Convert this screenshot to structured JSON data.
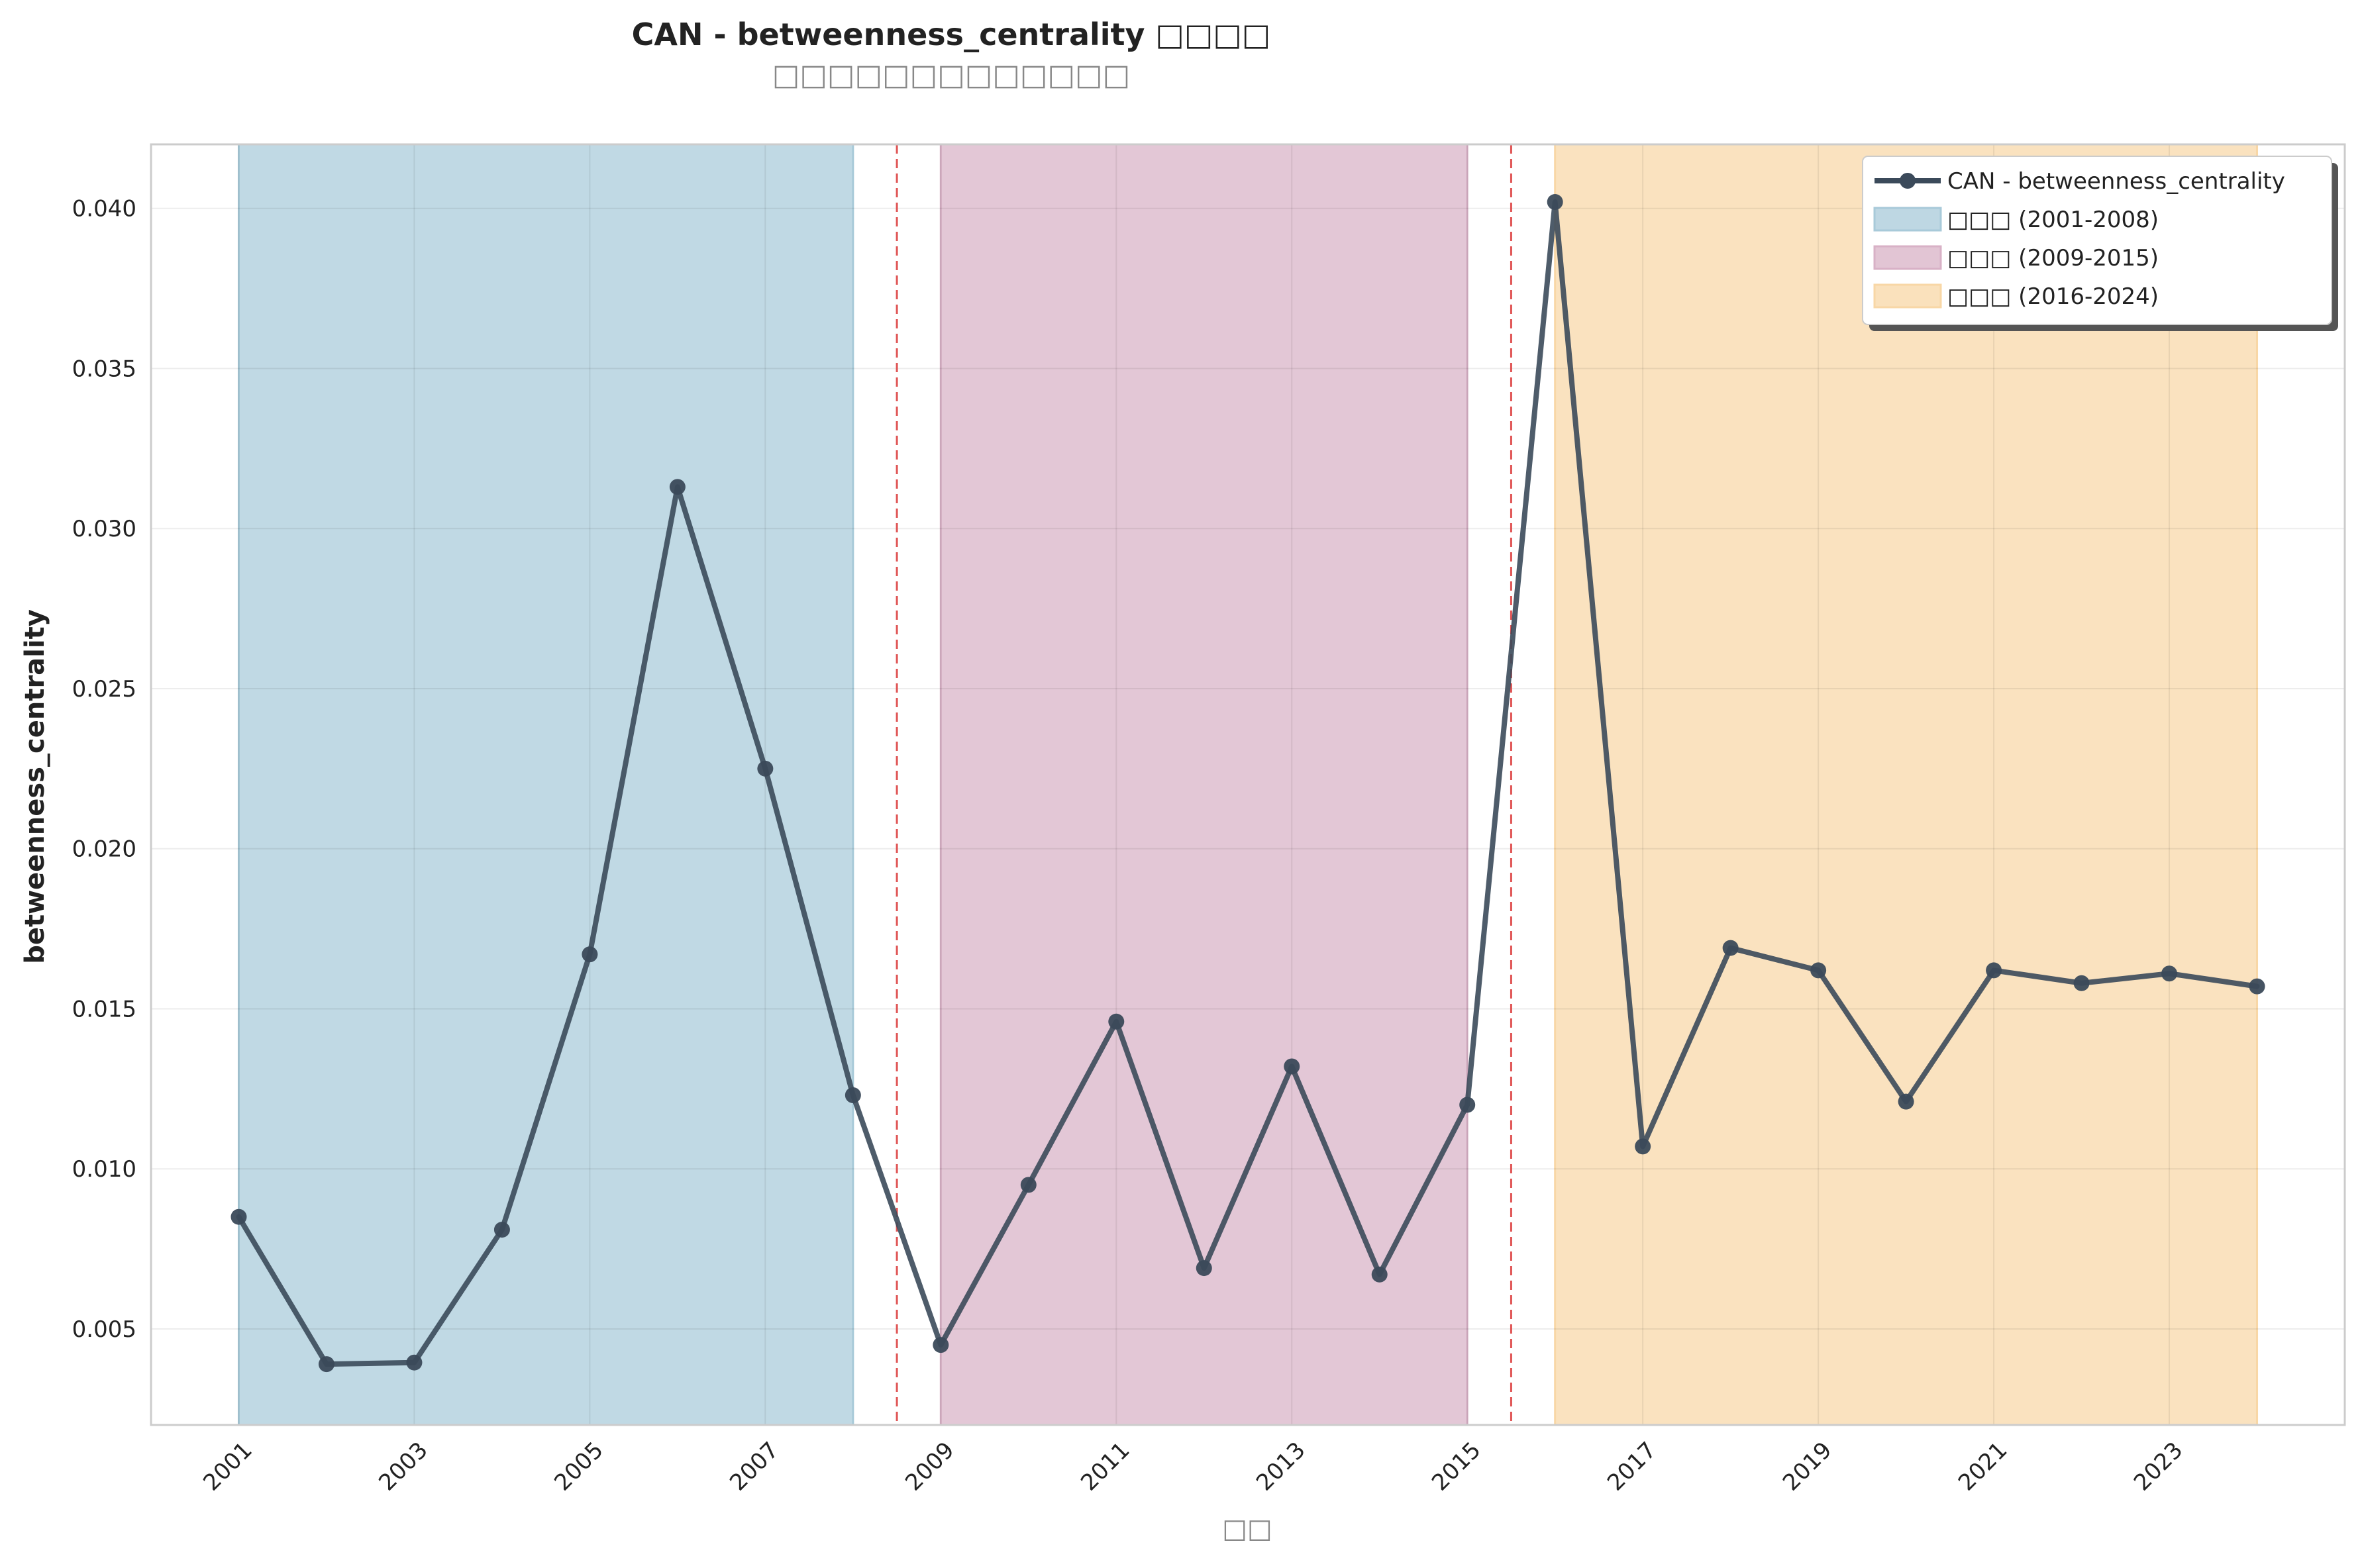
{
  "chart_data": {
    "type": "line",
    "title": "CAN - betweenness_centrality □□□□",
    "subtitle": "□□□□□□□□□□□□□",
    "xlabel": "□□",
    "ylabel": "betweenness_centrality",
    "xlim": [
      2000,
      2025
    ],
    "ylim": [
      0.002,
      0.042
    ],
    "yticks": [
      0.005,
      0.01,
      0.015,
      0.02,
      0.025,
      0.03,
      0.035,
      0.04
    ],
    "ytick_labels": [
      "0.005",
      "0.010",
      "0.015",
      "0.020",
      "0.025",
      "0.030",
      "0.035",
      "0.040"
    ],
    "xticks": [
      2001,
      2003,
      2005,
      2007,
      2009,
      2011,
      2013,
      2015,
      2017,
      2019,
      2021,
      2023
    ],
    "xtick_labels": [
      "2001",
      "2003",
      "2005",
      "2007",
      "2009",
      "2011",
      "2013",
      "2015",
      "2017",
      "2019",
      "2021",
      "2023"
    ],
    "grid": true,
    "legend_position": "top-right",
    "series": [
      {
        "name": "CAN - betweenness_centrality",
        "color": "#3b4a5a",
        "x": [
          2001,
          2002,
          2003,
          2004,
          2005,
          2006,
          2007,
          2008,
          2009,
          2010,
          2011,
          2012,
          2013,
          2014,
          2015,
          2016,
          2017,
          2018,
          2019,
          2020,
          2021,
          2022,
          2023,
          2024
        ],
        "y": [
          0.0085,
          0.0039,
          0.00395,
          0.0081,
          0.0167,
          0.0313,
          0.0225,
          0.0123,
          0.0045,
          0.0095,
          0.0146,
          0.0069,
          0.0132,
          0.0067,
          0.012,
          0.0402,
          0.0107,
          0.0169,
          0.0162,
          0.0121,
          0.0162,
          0.0158,
          0.0161,
          0.0157
        ]
      }
    ],
    "periods": [
      {
        "label": "□□□ (2001-2008)",
        "start": 2001,
        "end": 2008,
        "color": "#a8cad9"
      },
      {
        "label": "□□□ (2009-2015)",
        "start": 2009,
        "end": 2015,
        "color": "#d8b1c6"
      },
      {
        "label": "□□□ (2016-2024)",
        "start": 2016,
        "end": 2024,
        "color": "#f8d7a6"
      }
    ],
    "dividers": [
      2008.5,
      2015.5
    ],
    "divider_color": "#e05555"
  }
}
